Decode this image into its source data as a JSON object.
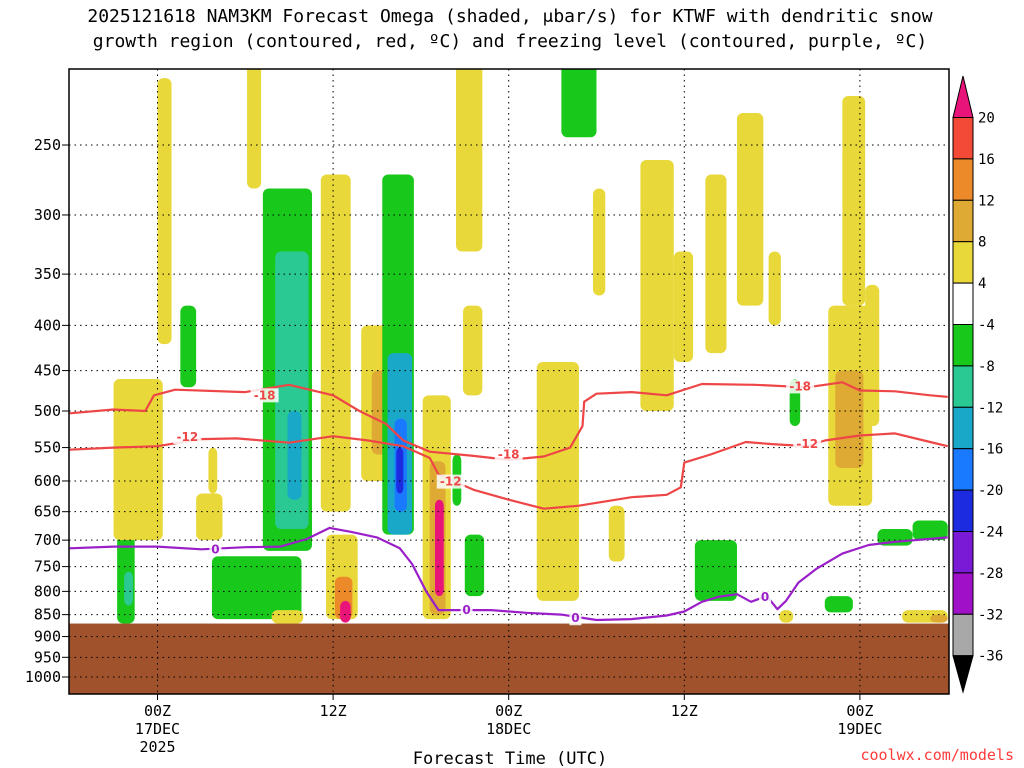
{
  "chart_data": {
    "type": "heatmap",
    "title_lines": [
      "2025121618 NAM3KM Forecast Omega (shaded, μbar/s) for KTWF with dendritic snow",
      "growth region (contoured, red, ºC) and freezing level (contoured, purple, ºC)"
    ],
    "xlabel": "Forecast Time (UTC)",
    "ylabel": "",
    "credit": "coolwx.com/models",
    "x_range_hours": [
      -5,
      45
    ],
    "x_ticks": [
      {
        "hour": 0,
        "lines": [
          "00Z",
          "17DEC",
          "2025"
        ]
      },
      {
        "hour": 10,
        "lines": [
          "12Z"
        ]
      },
      {
        "hour": 20,
        "lines": [
          "00Z",
          "18DEC"
        ]
      },
      {
        "hour": 30,
        "lines": [
          "12Z"
        ]
      },
      {
        "hour": 40,
        "lines": [
          "00Z",
          "19DEC"
        ]
      }
    ],
    "y_ticks": [
      {
        "label": "250",
        "hpa": 250
      },
      {
        "label": "300",
        "hpa": 300
      },
      {
        "label": "350",
        "hpa": 350
      },
      {
        "label": "400",
        "hpa": 400
      },
      {
        "label": "450",
        "hpa": 450
      },
      {
        "label": "500",
        "hpa": 500
      },
      {
        "label": "550",
        "hpa": 550
      },
      {
        "label": "600",
        "hpa": 600
      },
      {
        "label": "650",
        "hpa": 650
      },
      {
        "label": "700",
        "hpa": 700
      },
      {
        "label": "750",
        "hpa": 750
      },
      {
        "label": "800",
        "hpa": 800
      },
      {
        "label": "850",
        "hpa": 850
      },
      {
        "label": "900",
        "hpa": 900
      },
      {
        "label": "950",
        "hpa": 950
      },
      {
        "label": "1000",
        "hpa": 1000
      }
    ],
    "y_scale": "log-pressure (hPa)",
    "grid": "dotted",
    "colorbar": {
      "levels": [
        "20",
        "16",
        "12",
        "8",
        "4",
        "-4",
        "-8",
        "-12",
        "-16",
        "-20",
        "-24",
        "-28",
        "-32",
        "-36"
      ],
      "bins": [
        {
          "range": "> 20",
          "color": "#e8147a"
        },
        {
          "range": "16 to 20",
          "color": "#f24a36"
        },
        {
          "range": "12 to 16",
          "color": "#ec8a2a"
        },
        {
          "range": "8 to 12",
          "color": "#deaa34"
        },
        {
          "range": "4 to 8",
          "color": "#e8d83a"
        },
        {
          "range": "-4 to 4",
          "color": "#ffffff"
        },
        {
          "range": "-8 to -4",
          "color": "#18c81a"
        },
        {
          "range": "-12 to -8",
          "color": "#2ac892"
        },
        {
          "range": "-16 to -12",
          "color": "#1aa8c8"
        },
        {
          "range": "-20 to -16",
          "color": "#1a7aff"
        },
        {
          "range": "-24 to -20",
          "color": "#1c2ae0"
        },
        {
          "range": "-28 to -24",
          "color": "#7a1ad6"
        },
        {
          "range": "-32 to -28",
          "color": "#a010c8"
        },
        {
          "range": "-36 to -32",
          "color": "#a8a8a8"
        },
        {
          "range": "< -36",
          "color": "#000000"
        }
      ]
    },
    "terrain_color": "#a0522d",
    "surface_pressure_hpa": 870,
    "omega_regions": [
      {
        "t0": -2.3,
        "t1": -1.3,
        "p0": 690,
        "p1": 870,
        "value": -6
      },
      {
        "t0": -1.9,
        "t1": -1.4,
        "p0": 760,
        "p1": 830,
        "value": -10
      },
      {
        "t0": -2.5,
        "t1": 0.3,
        "p0": 460,
        "p1": 700,
        "value": 5
      },
      {
        "t0": 0.0,
        "t1": 0.8,
        "p0": 210,
        "p1": 420,
        "value": 5
      },
      {
        "t0": 1.3,
        "t1": 2.2,
        "p0": 380,
        "p1": 470,
        "value": -6
      },
      {
        "t0": 2.9,
        "t1": 3.4,
        "p0": 550,
        "p1": 620,
        "value": 6
      },
      {
        "t0": 2.2,
        "t1": 3.7,
        "p0": 620,
        "p1": 700,
        "value": 5
      },
      {
        "t0": 5.1,
        "t1": 5.9,
        "p0": 185,
        "p1": 280,
        "value": 5
      },
      {
        "t0": 6.0,
        "t1": 8.8,
        "p0": 280,
        "p1": 720,
        "value": -7
      },
      {
        "t0": 6.7,
        "t1": 8.6,
        "p0": 330,
        "p1": 680,
        "value": -10
      },
      {
        "t0": 7.4,
        "t1": 8.2,
        "p0": 500,
        "p1": 630,
        "value": -13
      },
      {
        "t0": 3.1,
        "t1": 8.2,
        "p0": 730,
        "p1": 860,
        "value": -6
      },
      {
        "t0": 6.5,
        "t1": 8.3,
        "p0": 840,
        "p1": 870,
        "value": 5
      },
      {
        "t0": 9.3,
        "t1": 11.0,
        "p0": 270,
        "p1": 650,
        "value": 5
      },
      {
        "t0": 9.6,
        "t1": 11.4,
        "p0": 690,
        "p1": 860,
        "value": 7
      },
      {
        "t0": 10.1,
        "t1": 11.1,
        "p0": 770,
        "p1": 860,
        "value": 13
      },
      {
        "t0": 10.4,
        "t1": 11.0,
        "p0": 820,
        "p1": 868,
        "value": 22
      },
      {
        "t0": 11.6,
        "t1": 13.5,
        "p0": 400,
        "p1": 600,
        "value": 5
      },
      {
        "t0": 12.2,
        "t1": 13.1,
        "p0": 450,
        "p1": 560,
        "value": 9
      },
      {
        "t0": 12.8,
        "t1": 14.6,
        "p0": 270,
        "p1": 690,
        "value": -7
      },
      {
        "t0": 13.1,
        "t1": 14.5,
        "p0": 430,
        "p1": 690,
        "value": -12
      },
      {
        "t0": 13.5,
        "t1": 14.2,
        "p0": 510,
        "p1": 650,
        "value": -18
      },
      {
        "t0": 13.6,
        "t1": 14.0,
        "p0": 550,
        "p1": 620,
        "value": -22
      },
      {
        "t0": 15.1,
        "t1": 16.7,
        "p0": 480,
        "p1": 860,
        "value": 6
      },
      {
        "t0": 15.5,
        "t1": 16.4,
        "p0": 570,
        "p1": 850,
        "value": 10
      },
      {
        "t0": 15.8,
        "t1": 16.3,
        "p0": 630,
        "p1": 810,
        "value": 21
      },
      {
        "t0": 16.8,
        "t1": 17.3,
        "p0": 560,
        "p1": 640,
        "value": -6
      },
      {
        "t0": 17.5,
        "t1": 18.6,
        "p0": 690,
        "p1": 810,
        "value": -6
      },
      {
        "t0": 17.4,
        "t1": 18.5,
        "p0": 380,
        "p1": 480,
        "value": 5
      },
      {
        "t0": 17.0,
        "t1": 18.5,
        "p0": 200,
        "p1": 330,
        "value": 5
      },
      {
        "t0": 21.6,
        "t1": 24.0,
        "p0": 440,
        "p1": 820,
        "value": 5
      },
      {
        "t0": 23.0,
        "t1": 25.0,
        "p0": 190,
        "p1": 245,
        "value": -6
      },
      {
        "t0": 24.8,
        "t1": 25.5,
        "p0": 280,
        "p1": 370,
        "value": 5
      },
      {
        "t0": 25.7,
        "t1": 26.6,
        "p0": 640,
        "p1": 740,
        "value": 5
      },
      {
        "t0": 27.5,
        "t1": 29.4,
        "p0": 260,
        "p1": 500,
        "value": 5
      },
      {
        "t0": 28.6,
        "t1": 29.0,
        "p0": 430,
        "p1": 470,
        "value": 7
      },
      {
        "t0": 29.4,
        "t1": 30.5,
        "p0": 330,
        "p1": 440,
        "value": 5
      },
      {
        "t0": 31.2,
        "t1": 32.4,
        "p0": 270,
        "p1": 430,
        "value": 5
      },
      {
        "t0": 30.6,
        "t1": 33.0,
        "p0": 700,
        "p1": 820,
        "value": -6
      },
      {
        "t0": 33.0,
        "t1": 34.5,
        "p0": 230,
        "p1": 380,
        "value": 5
      },
      {
        "t0": 34.8,
        "t1": 35.5,
        "p0": 330,
        "p1": 400,
        "value": 5
      },
      {
        "t0": 36.0,
        "t1": 36.6,
        "p0": 460,
        "p1": 520,
        "value": -6
      },
      {
        "t0": 38.2,
        "t1": 40.7,
        "p0": 380,
        "p1": 640,
        "value": 5
      },
      {
        "t0": 38.6,
        "t1": 40.2,
        "p0": 450,
        "p1": 580,
        "value": 8
      },
      {
        "t0": 39.0,
        "t1": 40.3,
        "p0": 220,
        "p1": 380,
        "value": 5
      },
      {
        "t0": 40.3,
        "t1": 41.1,
        "p0": 360,
        "p1": 520,
        "value": 5
      },
      {
        "t0": 41.0,
        "t1": 43.0,
        "p0": 680,
        "p1": 710,
        "value": -6
      },
      {
        "t0": 43.0,
        "t1": 45.0,
        "p0": 665,
        "p1": 700,
        "value": -6
      },
      {
        "t0": 38.0,
        "t1": 39.6,
        "p0": 810,
        "p1": 845,
        "value": -6
      },
      {
        "t0": 42.4,
        "t1": 45.0,
        "p0": 840,
        "p1": 868,
        "value": 5
      },
      {
        "t0": 44.0,
        "t1": 45.0,
        "p0": 850,
        "p1": 868,
        "value": 9
      },
      {
        "t0": 35.4,
        "t1": 36.2,
        "p0": 840,
        "p1": 868,
        "value": 5
      }
    ],
    "series": [
      {
        "color": "#ee4646",
        "label": "-18",
        "points": [
          [
            -5,
            503
          ],
          [
            -2.5,
            498
          ],
          [
            -0.7,
            500
          ],
          [
            -0.2,
            480
          ],
          [
            1.0,
            473
          ],
          [
            5.0,
            476
          ],
          [
            7.5,
            467
          ],
          [
            10.0,
            480
          ],
          [
            11.5,
            500
          ],
          [
            13.0,
            517
          ],
          [
            14.0,
            540
          ],
          [
            15.5,
            556
          ],
          [
            18.0,
            562
          ],
          [
            20.0,
            568
          ],
          [
            22.0,
            563
          ],
          [
            23.5,
            550
          ],
          [
            24.2,
            520
          ],
          [
            24.3,
            488
          ],
          [
            25.0,
            478
          ],
          [
            27.0,
            476
          ],
          [
            29.0,
            480
          ],
          [
            31.0,
            466
          ],
          [
            34.0,
            467
          ],
          [
            37.0,
            470
          ],
          [
            39.0,
            464
          ],
          [
            40.0,
            474
          ],
          [
            42.0,
            475
          ],
          [
            44.0,
            480
          ],
          [
            45.0,
            482
          ]
        ],
        "label_points": [
          [
            6.1,
            480
          ],
          [
            20.0,
            560
          ],
          [
            36.6,
            469
          ]
        ]
      },
      {
        "color": "#ee4646",
        "label": "-12",
        "points": [
          [
            -5,
            553
          ],
          [
            -2.5,
            550
          ],
          [
            0.0,
            548
          ],
          [
            2.5,
            538
          ],
          [
            4.5,
            537
          ],
          [
            7.5,
            543
          ],
          [
            10.0,
            534
          ],
          [
            12.0,
            540
          ],
          [
            14.0,
            548
          ],
          [
            15.5,
            565
          ],
          [
            16.0,
            590
          ],
          [
            18.0,
            614
          ],
          [
            20.0,
            630
          ],
          [
            22.0,
            645
          ],
          [
            24.0,
            640
          ],
          [
            27.0,
            626
          ],
          [
            29.0,
            622
          ],
          [
            29.8,
            610
          ],
          [
            30.0,
            572
          ],
          [
            31.5,
            560
          ],
          [
            33.5,
            542
          ],
          [
            35.0,
            545
          ],
          [
            37.0,
            548
          ],
          [
            38.0,
            540
          ],
          [
            40.0,
            533
          ],
          [
            42.0,
            530
          ],
          [
            44.0,
            542
          ],
          [
            45.0,
            548
          ]
        ],
        "label_points": [
          [
            1.7,
            535
          ],
          [
            16.7,
            601
          ],
          [
            37.0,
            545
          ]
        ]
      },
      {
        "color": "#9a1fc9",
        "label": "0",
        "points": [
          [
            -5,
            715
          ],
          [
            -2.5,
            712
          ],
          [
            0.0,
            712
          ],
          [
            2.5,
            717
          ],
          [
            5.0,
            713
          ],
          [
            7.0,
            712
          ],
          [
            8.5,
            698
          ],
          [
            9.8,
            678
          ],
          [
            11.0,
            685
          ],
          [
            12.5,
            695
          ],
          [
            13.8,
            715
          ],
          [
            14.5,
            745
          ],
          [
            15.3,
            800
          ],
          [
            16.0,
            840
          ],
          [
            17.0,
            840
          ],
          [
            19.0,
            840
          ],
          [
            21.0,
            846
          ],
          [
            23.0,
            850
          ],
          [
            25.0,
            862
          ],
          [
            27.0,
            860
          ],
          [
            29.0,
            852
          ],
          [
            30.0,
            843
          ],
          [
            31.0,
            822
          ],
          [
            32.0,
            811
          ],
          [
            33.0,
            806
          ],
          [
            33.8,
            822
          ],
          [
            34.7,
            810
          ],
          [
            35.3,
            838
          ],
          [
            35.8,
            820
          ],
          [
            36.5,
            782
          ],
          [
            37.5,
            755
          ],
          [
            39.0,
            725
          ],
          [
            40.5,
            709
          ],
          [
            42.0,
            703
          ],
          [
            45.0,
            695
          ]
        ],
        "label_points": [
          [
            3.3,
            717
          ],
          [
            17.6,
            840
          ],
          [
            23.8,
            858
          ],
          [
            34.6,
            812
          ]
        ]
      }
    ]
  }
}
